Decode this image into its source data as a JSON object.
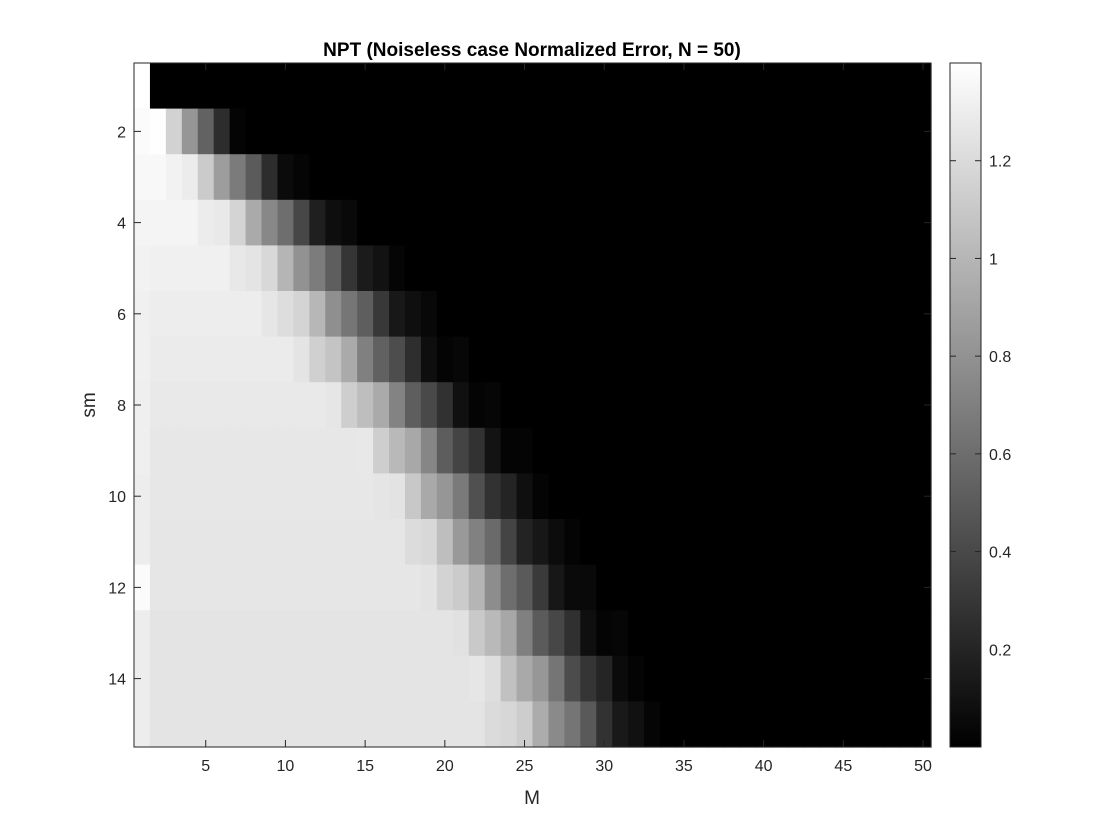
{
  "chart_data": {
    "type": "heatmap",
    "title": "NPT (Noiseless case Normalized Error, N = 50)",
    "xlabel": "M",
    "ylabel": "sm",
    "x_range": [
      1,
      50
    ],
    "y_range": [
      1,
      15
    ],
    "xticks": [
      "5",
      "10",
      "15",
      "20",
      "25",
      "30",
      "35",
      "40",
      "45",
      "50"
    ],
    "yticks": [
      "2",
      "4",
      "6",
      "8",
      "10",
      "12",
      "14"
    ],
    "colormap": "gray",
    "clim": [
      0,
      1.4
    ],
    "colorbar_ticks": [
      "0.2",
      "0.4",
      "0.6",
      "0.8",
      "1",
      "1.2"
    ],
    "row_profiles": [
      {
        "sm": 1,
        "first_col_value": 1.4,
        "edge_M": 1.5,
        "high_M": 1.5,
        "high": 1.4,
        "low": 0.0
      },
      {
        "sm": 2,
        "first_col_value": 1.38,
        "edge_M": 7.5,
        "high_M": 1.5,
        "high": 1.38,
        "low": 0.0
      },
      {
        "sm": 3,
        "first_col_value": 1.36,
        "edge_M": 11.5,
        "high_M": 2.5,
        "high": 1.36,
        "low": 0.0
      },
      {
        "sm": 4,
        "first_col_value": 1.34,
        "edge_M": 14.5,
        "high_M": 4.5,
        "high": 1.34,
        "low": 0.0
      },
      {
        "sm": 5,
        "first_col_value": 1.33,
        "edge_M": 17.5,
        "high_M": 6.5,
        "high": 1.32,
        "low": 0.0
      },
      {
        "sm": 6,
        "first_col_value": 1.32,
        "edge_M": 19.5,
        "high_M": 8.5,
        "high": 1.3,
        "low": 0.0
      },
      {
        "sm": 7,
        "first_col_value": 1.32,
        "edge_M": 21.0,
        "high_M": 10.0,
        "high": 1.29,
        "low": 0.0
      },
      {
        "sm": 8,
        "first_col_value": 1.31,
        "edge_M": 23.0,
        "high_M": 12.0,
        "high": 1.28,
        "low": 0.0
      },
      {
        "sm": 9,
        "first_col_value": 1.31,
        "edge_M": 25.0,
        "high_M": 14.0,
        "high": 1.27,
        "low": 0.0
      },
      {
        "sm": 10,
        "first_col_value": 1.3,
        "edge_M": 26.5,
        "high_M": 15.5,
        "high": 1.27,
        "low": 0.0
      },
      {
        "sm": 11,
        "first_col_value": 1.3,
        "edge_M": 28.0,
        "high_M": 17.0,
        "high": 1.26,
        "low": 0.0
      },
      {
        "sm": 12,
        "first_col_value": 1.38,
        "edge_M": 29.5,
        "high_M": 18.5,
        "high": 1.26,
        "low": 0.0
      },
      {
        "sm": 13,
        "first_col_value": 1.3,
        "edge_M": 31.0,
        "high_M": 20.0,
        "high": 1.25,
        "low": 0.0
      },
      {
        "sm": 14,
        "first_col_value": 1.3,
        "edge_M": 32.5,
        "high_M": 21.5,
        "high": 1.25,
        "low": 0.0
      },
      {
        "sm": 15,
        "first_col_value": 1.3,
        "edge_M": 33.5,
        "high_M": 22.5,
        "high": 1.25,
        "low": 0.0
      }
    ],
    "grid": false
  }
}
